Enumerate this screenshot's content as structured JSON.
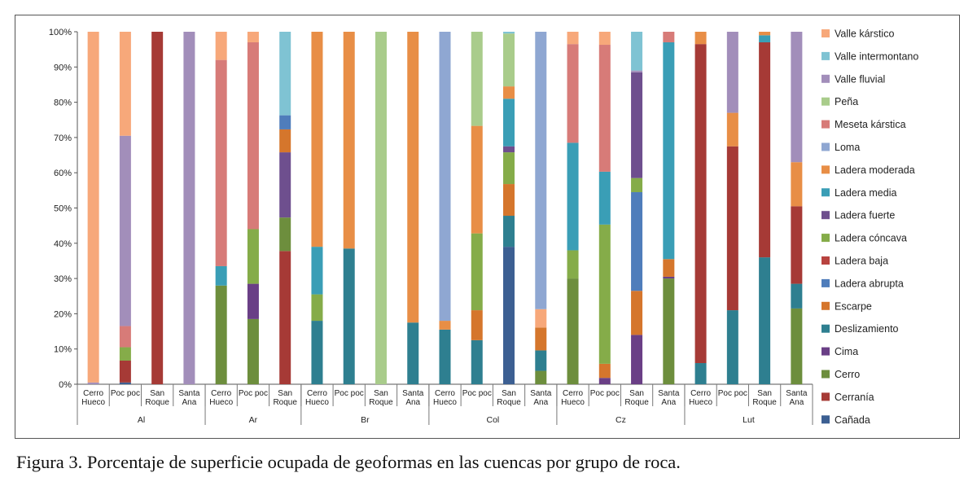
{
  "caption": "Figura 3. Porcentaje de superficie ocupada de geoformas en las cuencas por grupo de roca.",
  "colors": {
    "Valle kárstico": "#F7A87A",
    "Valle intermontano": "#7FC3D3",
    "Valle fluvial": "#A28EBA",
    "Peña": "#A9CC8B",
    "Meseta kárstica": "#D77B78",
    "Loma": "#8FA7D2",
    "Ladera moderada": "#E88E46",
    "Ladera media": "#3A9EB6",
    "Ladera fuerte": "#6E4F8E",
    "Ladera cóncava": "#85AC49",
    "Ladera baja": "#B8433F",
    "Ladera abrupta": "#4F7DBB",
    "Escarpe": "#D5762C",
    "Deslizamiento": "#2E7F90",
    "Cima": "#6A3F86",
    "Cerro": "#6D8E3D",
    "Cerranía": "#A63A36",
    "Cañada": "#3C5F92"
  },
  "chart_data": {
    "type": "bar",
    "stacked": true,
    "title": "",
    "xlabel": "",
    "ylabel": "",
    "ylim": [
      0,
      100
    ],
    "yticks": [
      "0%",
      "10%",
      "20%",
      "30%",
      "40%",
      "50%",
      "60%",
      "70%",
      "80%",
      "90%",
      "100%"
    ],
    "legend_position": "right",
    "legend": [
      "Valle kárstico",
      "Valle intermontano",
      "Valle fluvial",
      "Peña",
      "Meseta kárstica",
      "Loma",
      "Ladera moderada",
      "Ladera media",
      "Ladera fuerte",
      "Ladera cóncava",
      "Ladera baja",
      "Ladera abrupta",
      "Escarpe",
      "Deslizamiento",
      "Cima",
      "Cerro",
      "Cerranía",
      "Cañada"
    ],
    "groups": [
      {
        "name": "Al",
        "bars": [
          {
            "label": [
              "Cerro",
              "Hueco"
            ],
            "segments": [
              [
                "Valle fluvial",
                0.5
              ],
              [
                "Valle kárstico",
                99.5
              ]
            ]
          },
          {
            "label": [
              "Poc poc"
            ],
            "segments": [
              [
                "Cañada",
                0.5
              ],
              [
                "Cerranía",
                6.2
              ],
              [
                "Ladera cóncava",
                3.8
              ],
              [
                "Meseta kárstica",
                6
              ],
              [
                "Valle fluvial",
                54
              ],
              [
                "Valle kárstico",
                29.5
              ]
            ]
          },
          {
            "label": [
              "San",
              "Roque"
            ],
            "segments": [
              [
                "Cerranía",
                100
              ]
            ]
          },
          {
            "label": [
              "Santa",
              "Ana"
            ],
            "segments": [
              [
                "Valle fluvial",
                100
              ]
            ]
          }
        ]
      },
      {
        "name": "Ar",
        "bars": [
          {
            "label": [
              "Cerro",
              "Hueco"
            ],
            "segments": [
              [
                "Cerro",
                28
              ],
              [
                "Ladera media",
                5.5
              ],
              [
                "Meseta kárstica",
                58.5
              ],
              [
                "Valle kárstico",
                8
              ]
            ]
          },
          {
            "label": [
              "Poc poc"
            ],
            "segments": [
              [
                "Cerro",
                18.5
              ],
              [
                "Cima",
                10
              ],
              [
                "Ladera cóncava",
                15.5
              ],
              [
                "Meseta kárstica",
                53
              ],
              [
                "Valle kárstico",
                3
              ]
            ]
          },
          {
            "label": [
              "San",
              "Roque"
            ],
            "segments": [
              [
                "Cerranía",
                37.8
              ],
              [
                "Cerro",
                9.5
              ],
              [
                "Ladera fuerte",
                18.5
              ],
              [
                "Escarpe",
                6.5
              ],
              [
                "Ladera abrupta",
                4
              ],
              [
                "Valle intermontano",
                23.7
              ]
            ]
          }
        ]
      },
      {
        "name": "Br",
        "bars": [
          {
            "label": [
              "Cerro",
              "Hueco"
            ],
            "segments": [
              [
                "Deslizamiento",
                18
              ],
              [
                "Ladera cóncava",
                7.5
              ],
              [
                "Ladera media",
                13.5
              ],
              [
                "Ladera moderada",
                61
              ]
            ]
          },
          {
            "label": [
              "Poc poc"
            ],
            "segments": [
              [
                "Deslizamiento",
                38.5
              ],
              [
                "Ladera moderada",
                61.5
              ]
            ]
          },
          {
            "label": [
              "San",
              "Roque"
            ],
            "segments": [
              [
                "Peña",
                100
              ]
            ]
          },
          {
            "label": [
              "Santa",
              "Ana"
            ],
            "segments": [
              [
                "Deslizamiento",
                17.5
              ],
              [
                "Ladera moderada",
                82.5
              ]
            ]
          }
        ]
      },
      {
        "name": "Col",
        "bars": [
          {
            "label": [
              "Cerro",
              "Hueco"
            ],
            "segments": [
              [
                "Deslizamiento",
                15.5
              ],
              [
                "Ladera moderada",
                2.5
              ],
              [
                "Loma",
                82
              ]
            ]
          },
          {
            "label": [
              "Poc poc"
            ],
            "segments": [
              [
                "Deslizamiento",
                12.5
              ],
              [
                "Escarpe",
                8.5
              ],
              [
                "Ladera cóncava",
                21.8
              ],
              [
                "Ladera moderada",
                30.5
              ],
              [
                "Peña",
                26.7
              ]
            ]
          },
          {
            "label": [
              "San",
              "Roque"
            ],
            "segments": [
              [
                "Cañada",
                39
              ],
              [
                "Deslizamiento",
                8.8
              ],
              [
                "Escarpe",
                9
              ],
              [
                "Ladera cóncava",
                9
              ],
              [
                "Ladera fuerte",
                1.7
              ],
              [
                "Ladera media",
                13.5
              ],
              [
                "Ladera moderada",
                3.5
              ],
              [
                "Peña",
                15
              ],
              [
                "Valle intermontano",
                0.5
              ]
            ]
          },
          {
            "label": [
              "Santa",
              "Ana"
            ],
            "segments": [
              [
                "Cerro",
                3.8
              ],
              [
                "Deslizamiento",
                5.8
              ],
              [
                "Escarpe",
                6.5
              ],
              [
                "Valle kárstico",
                5.2
              ],
              [
                "Loma",
                78.7
              ]
            ]
          }
        ]
      },
      {
        "name": "Cz",
        "bars": [
          {
            "label": [
              "Cerro",
              "Hueco"
            ],
            "segments": [
              [
                "Cerro",
                30
              ],
              [
                "Ladera cóncava",
                8
              ],
              [
                "Ladera media",
                30.5
              ],
              [
                "Meseta kárstica",
                28
              ],
              [
                "Valle kárstico",
                3.5
              ]
            ]
          },
          {
            "label": [
              "Poc poc"
            ],
            "segments": [
              [
                "Cima",
                1.8
              ],
              [
                "Escarpe",
                4
              ],
              [
                "Ladera cóncava",
                39.5
              ],
              [
                "Ladera media",
                15
              ],
              [
                "Meseta kárstica",
                36
              ],
              [
                "Valle kárstico",
                3.7
              ]
            ]
          },
          {
            "label": [
              "San",
              "Roque"
            ],
            "segments": [
              [
                "Cima",
                14
              ],
              [
                "Escarpe",
                12.5
              ],
              [
                "Ladera abrupta",
                28
              ],
              [
                "Ladera cóncava",
                4
              ],
              [
                "Ladera fuerte",
                30
              ],
              [
                "Valle fluvial",
                0.5
              ],
              [
                "Valle intermontano",
                11
              ]
            ]
          },
          {
            "label": [
              "Santa",
              "Ana"
            ],
            "segments": [
              [
                "Cerro",
                30
              ],
              [
                "Cima",
                0.5
              ],
              [
                "Escarpe",
                5
              ],
              [
                "Ladera media",
                61.5
              ],
              [
                "Meseta kárstica",
                3
              ]
            ]
          }
        ]
      },
      {
        "name": "Lut",
        "bars": [
          {
            "label": [
              "Cerro",
              "Hueco"
            ],
            "segments": [
              [
                "Deslizamiento",
                6
              ],
              [
                "Cerranía",
                90.5
              ],
              [
                "Ladera moderada",
                3.5
              ]
            ]
          },
          {
            "label": [
              "Poc poc"
            ],
            "segments": [
              [
                "Deslizamiento",
                21
              ],
              [
                "Cerranía",
                46.5
              ],
              [
                "Ladera moderada",
                9.5
              ],
              [
                "Valle fluvial",
                23
              ]
            ]
          },
          {
            "label": [
              "San",
              "Roque"
            ],
            "segments": [
              [
                "Deslizamiento",
                36
              ],
              [
                "Cerranía",
                61
              ],
              [
                "Ladera media",
                2
              ],
              [
                "Ladera moderada",
                1
              ]
            ]
          },
          {
            "label": [
              "Santa",
              "Ana"
            ],
            "segments": [
              [
                "Cerro",
                21.5
              ],
              [
                "Deslizamiento",
                7
              ],
              [
                "Cerranía",
                22
              ],
              [
                "Ladera moderada",
                12.5
              ],
              [
                "Valle fluvial",
                37
              ]
            ]
          }
        ]
      }
    ]
  }
}
